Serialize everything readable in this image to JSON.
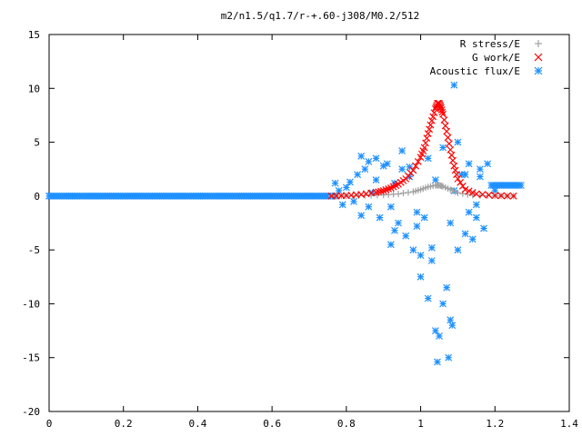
{
  "chart_data": {
    "type": "scatter",
    "title": "m2/n1.5/q1.7/r-+.60-j308/M0.2/512",
    "xlim": [
      0,
      1.4
    ],
    "ylim": [
      -20,
      15
    ],
    "xticks": [
      "0",
      "0.2",
      "0.4",
      "0.6",
      "0.8",
      "1",
      "1.2",
      "1.4"
    ],
    "xtick_values": [
      0,
      0.2,
      0.4,
      0.6,
      0.8,
      1.0,
      1.2,
      1.4
    ],
    "yticks": [
      "15",
      "10",
      "5",
      "0",
      "-5",
      "-10",
      "-15",
      "-20"
    ],
    "ytick_values": [
      15,
      10,
      5,
      0,
      -5,
      -10,
      -15,
      -20
    ],
    "legend_position": "top-right",
    "series": [
      {
        "name": "R stress/E",
        "marker": "plus",
        "color": "#a0a0a0",
        "x": [
          0.76,
          0.8,
          0.85,
          0.9,
          0.94,
          0.98,
          1.0,
          1.02,
          1.04,
          1.05,
          1.06,
          1.08,
          1.1,
          1.14,
          1.2,
          1.25
        ],
        "y": [
          0.0,
          0.02,
          0.05,
          0.1,
          0.2,
          0.4,
          0.6,
          0.85,
          1.0,
          1.0,
          0.9,
          0.6,
          0.3,
          0.08,
          0.02,
          0.0
        ]
      },
      {
        "name": "G work/E",
        "marker": "cross",
        "color": "#ff0000",
        "x": [
          0.76,
          0.8,
          0.84,
          0.88,
          0.9,
          0.92,
          0.94,
          0.96,
          0.98,
          1.0,
          1.01,
          1.02,
          1.03,
          1.04,
          1.045,
          1.05,
          1.055,
          1.06,
          1.07,
          1.08,
          1.09,
          1.1,
          1.12,
          1.15,
          1.2,
          1.25
        ],
        "y": [
          0.0,
          0.05,
          0.15,
          0.35,
          0.5,
          0.75,
          1.1,
          1.6,
          2.4,
          3.6,
          4.5,
          5.8,
          7.0,
          8.1,
          8.6,
          8.6,
          8.2,
          7.6,
          6.0,
          4.3,
          2.8,
          1.6,
          0.6,
          0.2,
          0.05,
          0.0
        ]
      },
      {
        "name": "Acoustic flux/E",
        "marker": "star",
        "color": "#1e90ff",
        "x": [
          0.77,
          0.78,
          0.79,
          0.8,
          0.81,
          0.82,
          0.83,
          0.84,
          0.85,
          0.86,
          0.87,
          0.88,
          0.89,
          0.9,
          0.91,
          0.92,
          0.93,
          0.94,
          0.95,
          0.96,
          0.97,
          0.98,
          0.99,
          1.0,
          1.01,
          1.02,
          1.03,
          1.04,
          1.045,
          1.05,
          1.06,
          1.07,
          1.075,
          1.08,
          1.085,
          1.09,
          1.1,
          1.11,
          1.12,
          1.13,
          1.14,
          1.15,
          1.16,
          1.17,
          1.18,
          1.2,
          1.22,
          1.25,
          0.84,
          0.88,
          0.92,
          0.95,
          0.99,
          1.02,
          1.03,
          1.06,
          1.09,
          1.1,
          1.13,
          1.16,
          0.86,
          0.93,
          0.97,
          1.0,
          1.04,
          1.08,
          1.12,
          1.15
        ],
        "y": [
          1.2,
          0.5,
          -0.8,
          0.8,
          1.3,
          -0.5,
          2.0,
          3.7,
          2.5,
          -1.0,
          0.3,
          3.5,
          -2.0,
          2.8,
          3.0,
          -4.5,
          1.2,
          -2.5,
          2.5,
          -3.7,
          2.7,
          -5.0,
          -1.5,
          -7.5,
          -2.0,
          -9.5,
          -6.0,
          -12.5,
          -15.4,
          -13.0,
          -10.0,
          -8.5,
          -15.0,
          -11.5,
          -12.0,
          10.3,
          -5.0,
          2.0,
          -3.5,
          3.0,
          -4.0,
          -2.0,
          2.5,
          -3.0,
          3.0,
          0.5,
          1.0,
          1.0,
          -1.8,
          1.5,
          -1.0,
          4.2,
          -2.8,
          3.5,
          -4.8,
          4.5,
          0.5,
          5.0,
          -1.5,
          1.8,
          3.2,
          -3.2,
          1.8,
          -5.5,
          1.5,
          -2.5,
          2.0,
          -0.8
        ],
        "dense_baseline": {
          "x_start": 0,
          "x_end": 0.77,
          "y": 0
        },
        "tail_baseline": {
          "x_start": 1.19,
          "x_end": 1.27,
          "y": 1.0
        }
      }
    ]
  }
}
